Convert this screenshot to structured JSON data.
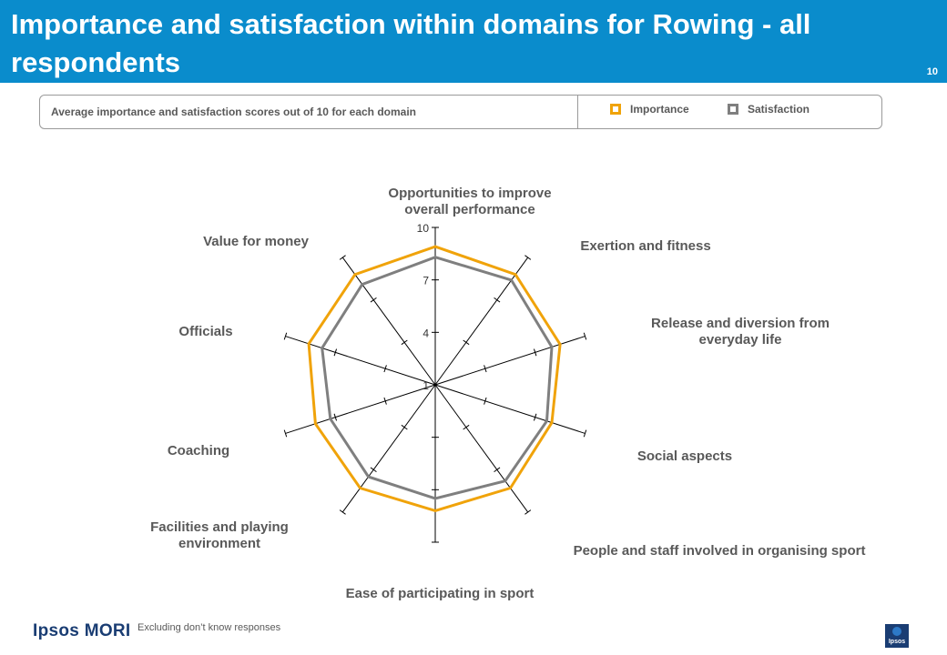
{
  "header": {
    "title": "Importance and satisfaction within domains for Rowing - all respondents",
    "page_number": "10"
  },
  "subtitle": "Average importance and satisfaction scores out of 10 for each domain",
  "legend": [
    {
      "label": "Importance",
      "color": "#f0a30a"
    },
    {
      "label": "Satisfaction",
      "color": "#7f7f7f"
    }
  ],
  "footnote": "Excluding don’t know responses",
  "branding": {
    "logo_text": "Ipsos MORI",
    "corner_logo_text": "Ipsos"
  },
  "colors": {
    "header_bg": "#0a8ccc",
    "importance": "#f0a30a",
    "satisfaction": "#7f7f7f",
    "axis": "#000000"
  },
  "chart_data": {
    "type": "radar",
    "categories": [
      "Opportunities to improve overall performance",
      "Exertion and fitness",
      "Release and diversion from everyday life",
      "Social aspects",
      "People and staff involved in organising sport",
      "Ease of participating in sport",
      "Facilities and playing environment",
      "Coaching",
      "Officials",
      "Value for money"
    ],
    "category_label_lines": [
      [
        "Opportunities to improve",
        "overall performance"
      ],
      [
        "Exertion and fitness"
      ],
      [
        "Release and diversion from",
        "everyday life"
      ],
      [
        "Social aspects"
      ],
      [
        "People and staff involved in organising sport"
      ],
      [
        "Ease of participating in sport"
      ],
      [
        "Facilities and playing",
        "environment"
      ],
      [
        "Coaching"
      ],
      [
        "Officials"
      ],
      [
        "Value for money"
      ]
    ],
    "series": [
      {
        "name": "Importance",
        "values": [
          8.9,
          8.8,
          8.5,
          8.0,
          8.3,
          8.2,
          8.3,
          8.2,
          8.6,
          8.8
        ]
      },
      {
        "name": "Satisfaction",
        "values": [
          8.3,
          8.4,
          8.0,
          7.7,
          7.8,
          7.5,
          7.5,
          7.3,
          7.8,
          8.1
        ]
      }
    ],
    "rmin": 1,
    "rmax": 10,
    "tick_labels": [
      "10",
      "7",
      "4",
      "1"
    ],
    "tick_values": [
      10,
      7,
      4,
      1
    ],
    "grid": false,
    "legend_position": "top"
  }
}
